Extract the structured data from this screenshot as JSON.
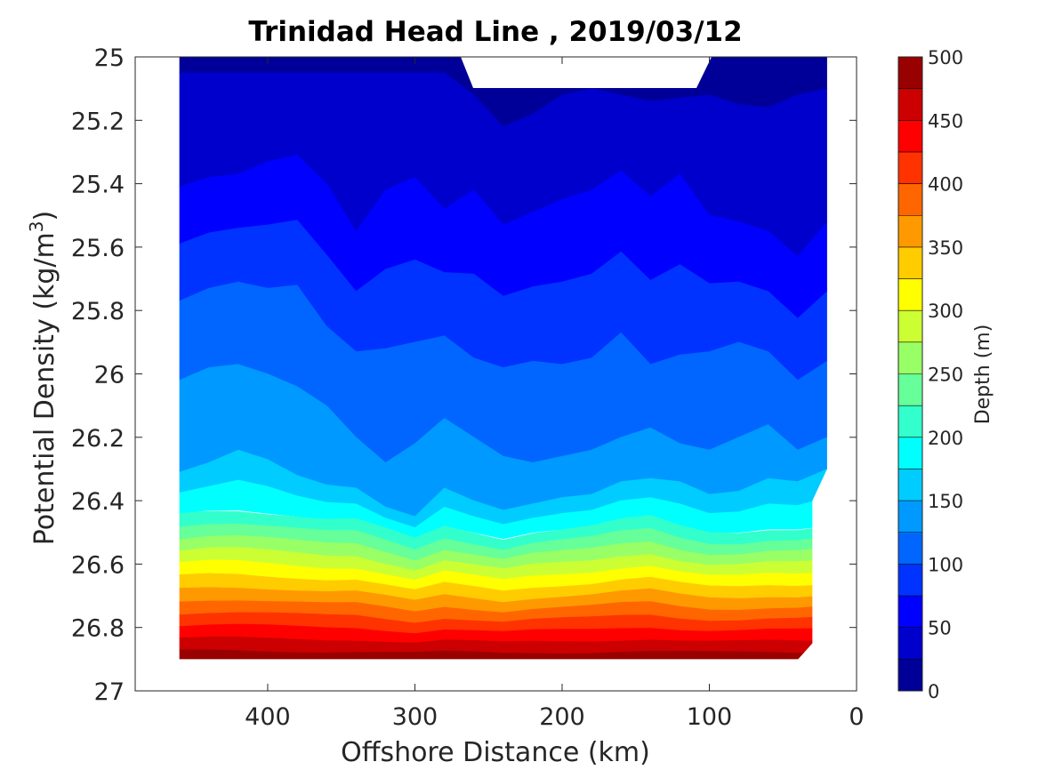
{
  "chart_data": {
    "type": "heatmap",
    "subtype": "filled-contour",
    "title": "Trinidad Head Line , 2019/03/12",
    "xlabel": "Offshore Distance (km)",
    "ylabel_main": "Potential Density (kg/m",
    "ylabel_sup": "3",
    "ylabel_close": ")",
    "xlim": [
      490,
      0
    ],
    "ylim": [
      25,
      27
    ],
    "y_reversed": true,
    "x_ticks": [
      "400",
      "300",
      "200",
      "100",
      "0"
    ],
    "y_ticks": [
      "25",
      "25.2",
      "25.4",
      "25.6",
      "25.8",
      "26",
      "26.2",
      "26.4",
      "26.6",
      "26.8",
      "27"
    ],
    "colorbar": {
      "label": "Depth (m)",
      "range": [
        0,
        500
      ],
      "step": 25,
      "ticks": [
        "500",
        "450",
        "400",
        "350",
        "300",
        "250",
        "200",
        "150",
        "100",
        "50",
        "0"
      ],
      "colormap": "jet"
    },
    "data_x_extent": [
      460,
      20
    ],
    "contours": {
      "x": [
        460,
        440,
        420,
        400,
        380,
        360,
        340,
        320,
        300,
        280,
        260,
        240,
        220,
        200,
        180,
        160,
        140,
        120,
        100,
        80,
        60,
        40,
        20
      ],
      "depth_25m": [
        25.05,
        25.05,
        25.05,
        25.05,
        25.05,
        25.05,
        25.05,
        25.05,
        25.05,
        25.05,
        25.12,
        25.22,
        25.18,
        25.12,
        25.1,
        25.12,
        25.14,
        25.13,
        25.12,
        25.15,
        25.16,
        25.12,
        25.1
      ],
      "depth_50m": [
        25.41,
        25.38,
        25.37,
        25.33,
        25.31,
        25.4,
        25.55,
        25.42,
        25.38,
        25.48,
        25.42,
        25.53,
        25.49,
        25.45,
        25.42,
        25.36,
        25.44,
        25.37,
        25.5,
        25.52,
        25.55,
        25.63,
        25.52
      ],
      "depth_100m": [
        25.77,
        25.73,
        25.71,
        25.73,
        25.72,
        25.85,
        25.93,
        25.92,
        25.9,
        25.88,
        25.95,
        25.98,
        25.96,
        25.97,
        25.95,
        25.87,
        25.97,
        25.94,
        25.93,
        25.9,
        25.93,
        26.02,
        25.96
      ],
      "depth_125m": [
        26.02,
        25.98,
        25.97,
        26.0,
        26.04,
        26.1,
        26.2,
        26.28,
        26.22,
        26.14,
        26.2,
        26.26,
        26.28,
        26.26,
        26.24,
        26.2,
        26.17,
        26.22,
        26.24,
        26.2,
        26.16,
        26.24,
        26.2
      ],
      "depth_150m": [
        26.31,
        26.28,
        26.24,
        26.27,
        26.32,
        26.35,
        26.36,
        26.42,
        26.45,
        26.36,
        26.4,
        26.43,
        26.41,
        26.39,
        26.38,
        26.34,
        26.33,
        26.34,
        26.38,
        26.37,
        26.33,
        26.34,
        26.3
      ],
      "depth_200m": [
        26.44,
        26.43,
        26.43,
        26.44,
        26.45,
        26.46,
        26.46,
        26.49,
        26.52,
        26.48,
        26.5,
        26.52,
        26.5,
        26.49,
        26.48,
        26.46,
        26.45,
        26.48,
        26.5,
        26.5,
        26.49,
        26.49,
        26.48
      ]
    }
  }
}
